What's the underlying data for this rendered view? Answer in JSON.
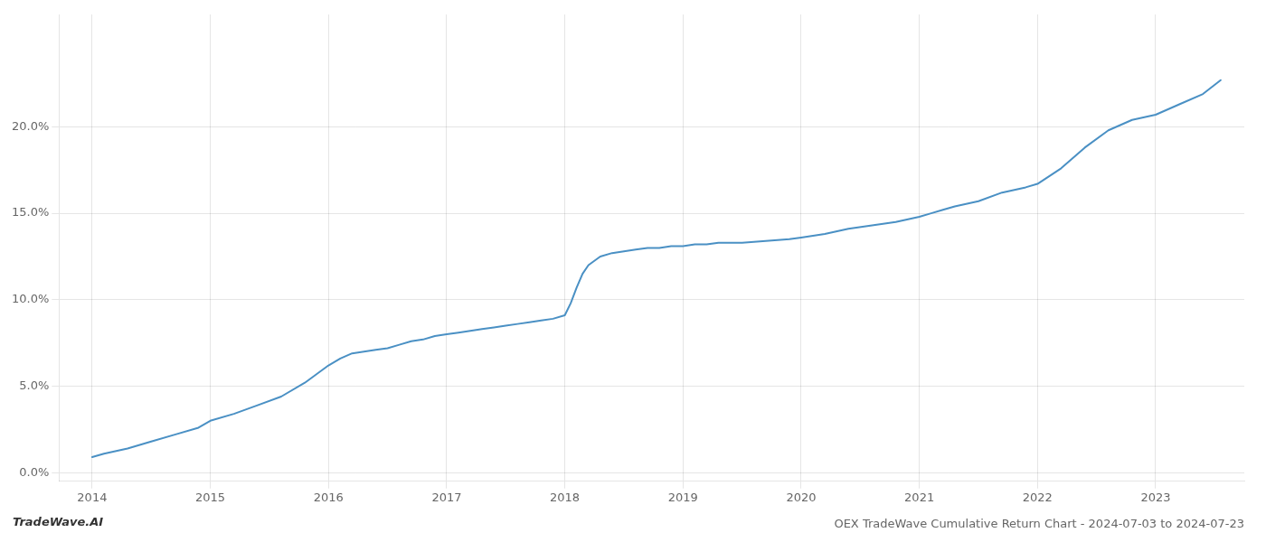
{
  "chart_data": {
    "type": "line",
    "title": "OEX TradeWave Cumulative Return Chart - 2024-07-03 to 2024-07-23",
    "annotations": [
      "TradeWave.AI"
    ],
    "color": "#4a90c4",
    "grid": true,
    "x": [
      2014.0,
      2014.1,
      2014.3,
      2014.5,
      2014.7,
      2014.9,
      2015.0,
      2015.2,
      2015.4,
      2015.6,
      2015.8,
      2016.0,
      2016.1,
      2016.2,
      2016.4,
      2016.5,
      2016.6,
      2016.7,
      2016.8,
      2016.9,
      2017.0,
      2017.1,
      2017.2,
      2017.3,
      2017.4,
      2017.5,
      2017.6,
      2017.7,
      2017.8,
      2017.9,
      2018.0,
      2018.05,
      2018.1,
      2018.15,
      2018.2,
      2018.3,
      2018.4,
      2018.5,
      2018.6,
      2018.7,
      2018.8,
      2018.9,
      2019.0,
      2019.1,
      2019.2,
      2019.3,
      2019.5,
      2019.7,
      2019.9,
      2020.0,
      2020.2,
      2020.4,
      2020.6,
      2020.8,
      2021.0,
      2021.1,
      2021.2,
      2021.3,
      2021.5,
      2021.7,
      2021.9,
      2022.0,
      2022.2,
      2022.4,
      2022.6,
      2022.8,
      2023.0,
      2023.2,
      2023.4,
      2023.55
    ],
    "values": [
      0.009,
      0.011,
      0.014,
      0.018,
      0.022,
      0.026,
      0.03,
      0.034,
      0.039,
      0.044,
      0.052,
      0.062,
      0.066,
      0.069,
      0.071,
      0.072,
      0.074,
      0.076,
      0.077,
      0.079,
      0.08,
      0.081,
      0.082,
      0.083,
      0.084,
      0.085,
      0.086,
      0.087,
      0.088,
      0.089,
      0.091,
      0.098,
      0.107,
      0.115,
      0.12,
      0.125,
      0.127,
      0.128,
      0.129,
      0.13,
      0.13,
      0.131,
      0.131,
      0.132,
      0.132,
      0.133,
      0.133,
      0.134,
      0.135,
      0.136,
      0.138,
      0.141,
      0.143,
      0.145,
      0.148,
      0.15,
      0.152,
      0.154,
      0.157,
      0.162,
      0.165,
      0.167,
      0.176,
      0.188,
      0.198,
      0.204,
      0.207,
      0.213,
      0.219,
      0.227
    ],
    "xlim": [
      2013.72,
      2023.75
    ],
    "xticks": [
      2014,
      2015,
      2016,
      2017,
      2018,
      2019,
      2020,
      2021,
      2022,
      2023
    ],
    "ylim": [
      -0.005,
      0.265
    ],
    "yticks": [
      {
        "value": 0.0,
        "label": "0.0%"
      },
      {
        "value": 0.05,
        "label": "5.0%"
      },
      {
        "value": 0.1,
        "label": "10.0%"
      },
      {
        "value": 0.15,
        "label": "15.0%"
      },
      {
        "value": 0.2,
        "label": "20.0%"
      }
    ]
  }
}
